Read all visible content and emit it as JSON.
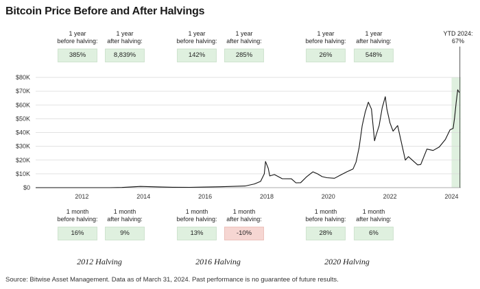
{
  "title": "Bitcoin Price Before and After Halvings",
  "source": "Source: Bitwise Asset Management. Data as of March 31, 2024. Past performance is no guarantee of future results.",
  "colors": {
    "positive_box": "#dff0df",
    "negative_box": "#f6d6d2",
    "line": "#111111",
    "ytd_band": "#dff0df"
  },
  "top_stats": [
    {
      "l1": "1 year",
      "l2": "before halving:",
      "value": "385%",
      "tone": "pos"
    },
    {
      "l1": "1 year",
      "l2": "after halving:",
      "value": "8,839%",
      "tone": "pos"
    },
    {
      "l1": "1 year",
      "l2": "before halving:",
      "value": "142%",
      "tone": "pos"
    },
    {
      "l1": "1 year",
      "l2": "after halving:",
      "value": "285%",
      "tone": "pos"
    },
    {
      "l1": "1 year",
      "l2": "before halving:",
      "value": "26%",
      "tone": "pos"
    },
    {
      "l1": "1 year",
      "l2": "after halving:",
      "value": "548%",
      "tone": "pos"
    }
  ],
  "bottom_stats": [
    {
      "l1": "1 month",
      "l2": "before halving:",
      "value": "16%",
      "tone": "pos"
    },
    {
      "l1": "1 month",
      "l2": "after halving:",
      "value": "9%",
      "tone": "pos"
    },
    {
      "l1": "1 month",
      "l2": "before halving:",
      "value": "13%",
      "tone": "pos"
    },
    {
      "l1": "1 month",
      "l2": "after halving:",
      "value": "-10%",
      "tone": "neg"
    },
    {
      "l1": "1 month",
      "l2": "before halving:",
      "value": "28%",
      "tone": "pos"
    },
    {
      "l1": "1 month",
      "l2": "after halving:",
      "value": "6%",
      "tone": "pos"
    }
  ],
  "ytd": {
    "label": "YTD 2024:",
    "value": "67%"
  },
  "halvings": [
    "2012 Halving",
    "2016 Halving",
    "2020 Halving"
  ],
  "chart_data": {
    "type": "line",
    "title": "Bitcoin Price Before and After Halvings",
    "xlabel": "",
    "ylabel": "",
    "xlim": [
      2010.5,
      2024.3
    ],
    "ylim": [
      0,
      80000
    ],
    "x_ticks": [
      "2012",
      "2014",
      "2016",
      "2018",
      "2020",
      "2022",
      "2024"
    ],
    "y_ticks": [
      "$0",
      "$10K",
      "$20K",
      "$30K",
      "$40K",
      "$50K",
      "$60K",
      "$70K",
      "$80K"
    ],
    "grid": true,
    "series": [
      {
        "x": [
          2010.5,
          2011.0,
          2011.45,
          2011.9,
          2012.5,
          2012.9,
          2013.3,
          2013.9,
          2014.5,
          2014.95,
          2015.5,
          2015.9,
          2016.5,
          2016.95,
          2017.3,
          2017.6,
          2017.8,
          2017.92,
          2017.96,
          2018.05,
          2018.1,
          2018.25,
          2018.5,
          2018.8,
          2018.95,
          2019.1,
          2019.3,
          2019.5,
          2019.65,
          2019.8,
          2019.95,
          2020.2,
          2020.4,
          2020.6,
          2020.8,
          2020.9,
          2021.0,
          2021.1,
          2021.2,
          2021.3,
          2021.4,
          2021.5,
          2021.55,
          2021.65,
          2021.75,
          2021.85,
          2021.9,
          2022.0,
          2022.1,
          2022.25,
          2022.4,
          2022.5,
          2022.6,
          2022.75,
          2022.9,
          2023.0,
          2023.2,
          2023.4,
          2023.6,
          2023.8,
          2023.95,
          2024.05,
          2024.1,
          2024.15,
          2024.2,
          2024.25
        ],
        "y": [
          0,
          1,
          20,
          4,
          7,
          13,
          150,
          900,
          550,
          320,
          250,
          420,
          650,
          950,
          1200,
          2700,
          4500,
          10000,
          19000,
          14000,
          8500,
          9500,
          6500,
          6400,
          3500,
          3600,
          8000,
          11500,
          10000,
          8000,
          7200,
          6800,
          9200,
          11500,
          13500,
          18500,
          29000,
          45000,
          55000,
          62000,
          57000,
          34000,
          38000,
          45000,
          58000,
          66000,
          57000,
          47000,
          41000,
          45000,
          30000,
          20000,
          22500,
          19500,
          16500,
          16800,
          28000,
          27000,
          29500,
          35000,
          42000,
          43000,
          51000,
          62000,
          71000,
          69000
        ]
      }
    ]
  }
}
